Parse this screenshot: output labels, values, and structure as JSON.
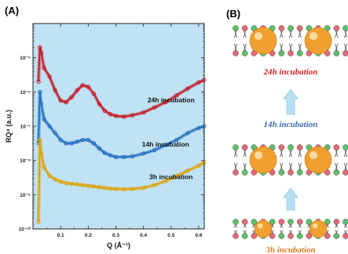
{
  "panels": {
    "a_label": "(A)",
    "b_label": "(B)"
  },
  "chart_data": {
    "type": "line",
    "xlabel": "Q (Å⁻¹)",
    "ylabel": "RQ⁴ (a.u.)",
    "xlim": [
      0.0,
      0.62
    ],
    "xticks": [
      0.1,
      0.2,
      0.3,
      0.4,
      0.5,
      0.6
    ],
    "yscale": "log",
    "ylim_decades": [
      -10,
      -4
    ],
    "yticks": [
      "10⁻⁵",
      "10⁻⁶",
      "10⁻⁷",
      "10⁻⁸",
      "10⁻⁹",
      "10⁻¹⁰"
    ],
    "plot_background": "#bfe3f5",
    "series": [
      {
        "name": "24h incubation",
        "color": "#c4141f",
        "x": [
          0.02,
          0.025,
          0.03,
          0.04,
          0.06,
          0.08,
          0.1,
          0.12,
          0.14,
          0.16,
          0.18,
          0.2,
          0.22,
          0.24,
          0.26,
          0.28,
          0.3,
          0.33,
          0.36,
          0.4,
          0.44,
          0.48,
          0.52,
          0.56,
          0.6,
          0.62
        ],
        "log_y": [
          -5.7,
          -4.7,
          -4.85,
          -5.3,
          -5.55,
          -5.95,
          -6.25,
          -6.3,
          -6.15,
          -5.95,
          -5.8,
          -5.85,
          -6.05,
          -6.35,
          -6.55,
          -6.65,
          -6.7,
          -6.72,
          -6.68,
          -6.6,
          -6.45,
          -6.3,
          -6.1,
          -5.9,
          -5.72,
          -5.65
        ]
      },
      {
        "name": "14h incubation",
        "color": "#1f6bbf",
        "x": [
          0.02,
          0.025,
          0.03,
          0.04,
          0.06,
          0.08,
          0.1,
          0.12,
          0.14,
          0.16,
          0.18,
          0.2,
          0.22,
          0.24,
          0.26,
          0.28,
          0.3,
          0.33,
          0.36,
          0.4,
          0.44,
          0.48,
          0.52,
          0.56,
          0.6,
          0.62
        ],
        "log_y": [
          -7.5,
          -6.0,
          -6.35,
          -6.8,
          -7.0,
          -7.2,
          -7.4,
          -7.5,
          -7.5,
          -7.45,
          -7.4,
          -7.4,
          -7.5,
          -7.65,
          -7.78,
          -7.85,
          -7.9,
          -7.9,
          -7.88,
          -7.8,
          -7.7,
          -7.55,
          -7.4,
          -7.2,
          -7.05,
          -7.0
        ]
      },
      {
        "name": "3h incubation",
        "color": "#e0a000",
        "x": [
          0.02,
          0.025,
          0.03,
          0.04,
          0.06,
          0.08,
          0.1,
          0.12,
          0.14,
          0.16,
          0.18,
          0.2,
          0.22,
          0.24,
          0.26,
          0.28,
          0.3,
          0.33,
          0.36,
          0.4,
          0.44,
          0.48,
          0.52,
          0.56,
          0.6,
          0.62
        ],
        "log_y": [
          -9.8,
          -7.4,
          -7.8,
          -8.2,
          -8.45,
          -8.55,
          -8.62,
          -8.66,
          -8.68,
          -8.7,
          -8.72,
          -8.74,
          -8.76,
          -8.78,
          -8.8,
          -8.82,
          -8.83,
          -8.84,
          -8.83,
          -8.8,
          -8.72,
          -8.6,
          -8.45,
          -8.3,
          -8.15,
          -8.05
        ]
      }
    ]
  },
  "schematic": {
    "stages": [
      {
        "label": "24h incubation",
        "color": "#d8202a"
      },
      {
        "label": "14h incubation",
        "color": "#3a6fb0"
      },
      {
        "label": "3h incubation",
        "color": "#e07a20"
      }
    ],
    "colors": {
      "nanoparticle": "#f0a030",
      "headgroup_green": "#5fbf6a",
      "headgroup_pink": "#e56a78",
      "arrow": "#b7dff2"
    }
  }
}
